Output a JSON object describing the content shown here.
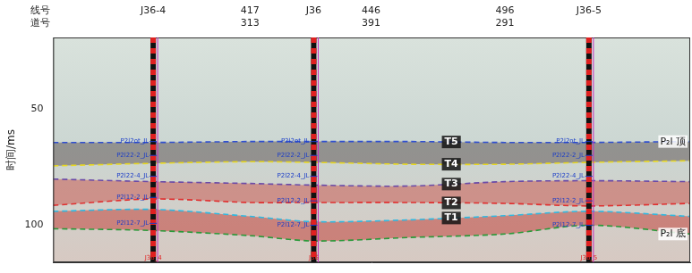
{
  "chart_data": {
    "type": "line",
    "y_label": "时间/ms",
    "ylim": [
      19,
      116
    ],
    "yticks": [
      50,
      100
    ],
    "xlim": [
      0,
      100
    ],
    "tick_labels": "y",
    "grid": false,
    "header_labels": [
      "线号",
      "道号"
    ],
    "traces": [
      {
        "x": 30.9,
        "line": "417",
        "trace": "313"
      },
      {
        "x": 49.9,
        "line": "446",
        "trace": "391"
      },
      {
        "x": 70.9,
        "line": "496",
        "trace": "291"
      }
    ],
    "wells": [
      {
        "name": "J36-4",
        "bottom_label": "J36_4",
        "x": 15.7,
        "markers": [
          {
            "label": "P2l2ot_JL",
            "y": 63.9
          },
          {
            "label": "P2l22-2_JL",
            "y": 69.9
          },
          {
            "label": "P2l22-4_JL",
            "y": 78.9
          },
          {
            "label": "P2l12-2_JL",
            "y": 88.0
          },
          {
            "label": "P2l12-7_JL",
            "y": 99.2
          }
        ]
      },
      {
        "name": "J36",
        "bottom_label": "J36",
        "x": 40.9,
        "markers": [
          {
            "label": "P2l2ot_JL",
            "y": 63.9
          },
          {
            "label": "P2l22-2_JL",
            "y": 69.9
          },
          {
            "label": "P2l22-4_JL",
            "y": 78.9
          },
          {
            "label": "P2l12-2_JL",
            "y": 89.5
          },
          {
            "label": "P2l12-7_JL",
            "y": 100.0
          }
        ]
      },
      {
        "name": "J36-5",
        "bottom_label": "J36_5",
        "x": 84.1,
        "markers": [
          {
            "label": "P2l2ot_JL",
            "y": 63.9
          },
          {
            "label": "P2l22-2_JL",
            "y": 69.9
          },
          {
            "label": "P2l22-4_JL",
            "y": 78.9
          },
          {
            "label": "P2l12-2_JL",
            "y": 89.5
          },
          {
            "label": "P2l12-7_JL",
            "y": 100.0
          }
        ]
      }
    ],
    "x": [
      0,
      15.7,
      30.9,
      40.9,
      55.8,
      70.9,
      84.1,
      100
    ],
    "series": [
      {
        "name": "T5",
        "end_label": "P₂l 顶",
        "color": "#2f4fd0",
        "line_style": "dashed",
        "values": [
          64.3,
          64.3,
          63.9,
          63.9,
          63.9,
          64.3,
          64.3,
          63.9
        ]
      },
      {
        "name": "T4",
        "color": "#e8d820",
        "line_style": "dashed",
        "values": [
          74.4,
          73.3,
          72.6,
          72.9,
          73.7,
          73.7,
          72.9,
          72.2
        ]
      },
      {
        "name": "T3",
        "color": "#6a4aa8",
        "line_style": "dashed",
        "values": [
          80.1,
          81.2,
          82.0,
          82.7,
          83.1,
          81.2,
          80.8,
          81.2
        ]
      },
      {
        "name": "T2",
        "color": "#e03030",
        "line_style": "dashed",
        "values": [
          91.4,
          88.7,
          90.2,
          90.2,
          90.2,
          90.6,
          91.7,
          90.6
        ]
      },
      {
        "name": "T1",
        "color": "#30b8e0",
        "line_style": "dashed",
        "values": [
          94.0,
          93.2,
          96.2,
          98.5,
          97.7,
          95.9,
          94.0,
          96.2
        ]
      },
      {
        "end_label": "P₂l 底",
        "color": "#2a9a3a",
        "line_style": "dashed",
        "values": [
          101.5,
          102.3,
          104.5,
          106.8,
          105.3,
          103.8,
          100.0,
          103.8
        ]
      }
    ]
  }
}
